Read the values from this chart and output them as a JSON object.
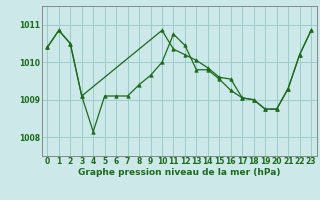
{
  "background_color": "#cce8e8",
  "grid_color": "#99cccc",
  "line_color": "#1a6b1a",
  "spine_color": "#888888",
  "title": "Graphe pression niveau de la mer (hPa)",
  "xlim": [
    -0.5,
    23.5
  ],
  "ylim": [
    1007.5,
    1011.5
  ],
  "yticks": [
    1008,
    1009,
    1010,
    1011
  ],
  "xticks": [
    0,
    1,
    2,
    3,
    4,
    5,
    6,
    7,
    8,
    9,
    10,
    11,
    12,
    13,
    14,
    15,
    16,
    17,
    18,
    19,
    20,
    21,
    22,
    23
  ],
  "series1_x": [
    0,
    1,
    2,
    3,
    4,
    5,
    6,
    7,
    8,
    9,
    10,
    11,
    12,
    13,
    14,
    15,
    16,
    17,
    18,
    19,
    20,
    21,
    22,
    23
  ],
  "series1_y": [
    1010.4,
    1010.85,
    1010.5,
    1009.1,
    1008.15,
    1009.1,
    1009.1,
    1009.1,
    1009.4,
    1009.65,
    1010.0,
    1010.75,
    1010.45,
    1009.8,
    1009.8,
    1009.55,
    1009.25,
    1009.05,
    1009.0,
    1008.75,
    1008.75,
    1009.3,
    1010.2,
    1010.85
  ],
  "series2_x": [
    0,
    1,
    2,
    3,
    10,
    11,
    12,
    13,
    14,
    15,
    16,
    17,
    18,
    19,
    20,
    21,
    22,
    23
  ],
  "series2_y": [
    1010.4,
    1010.85,
    1010.5,
    1009.1,
    1010.85,
    1010.35,
    1010.2,
    1010.05,
    1009.85,
    1009.6,
    1009.55,
    1009.05,
    1009.0,
    1008.75,
    1008.75,
    1009.3,
    1010.2,
    1010.85
  ],
  "title_fontsize": 6.5,
  "tick_fontsize": 5.5
}
